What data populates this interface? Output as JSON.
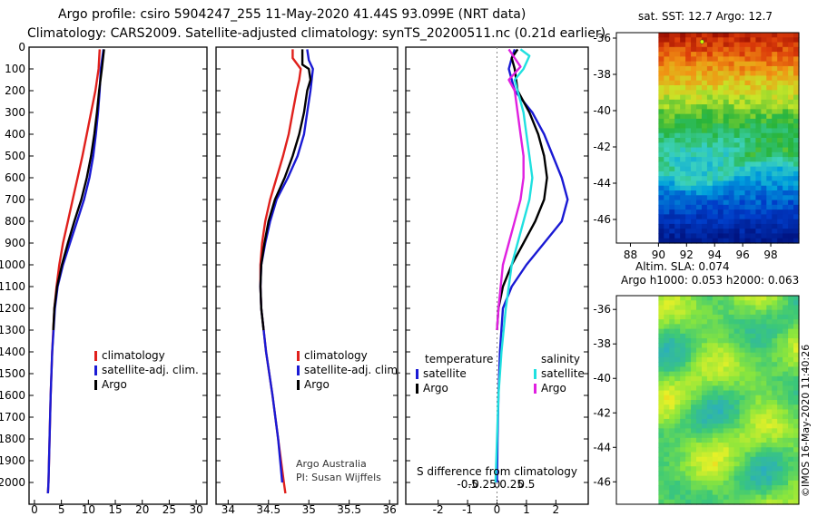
{
  "header": {
    "line1": "Argo profile: csiro 5904247_255 11-May-2020 41.44S 93.099E (NRT data)",
    "line2": "Climatology: CARS2009. Satellite-adjusted climatology: synTS_20200511.nc (0.21d earlier)"
  },
  "colors": {
    "climatology": "#e0201c",
    "satellite": "#1a1ad4",
    "argo": "#000000",
    "salinity_satellite": "#20e0e0",
    "salinity_argo": "#e020e0"
  },
  "credits": {
    "org": "Argo Australia",
    "pi": "PI: Susan Wijffels",
    "stamp": "©IMOS 16-May-2020 11:40:26"
  },
  "chart_data": [
    {
      "id": "temperature",
      "type": "line",
      "ylabel": "",
      "ylim": [
        0,
        2100
      ],
      "y_ticks": [
        0,
        100,
        200,
        300,
        400,
        500,
        600,
        700,
        800,
        900,
        1000,
        1100,
        1200,
        1300,
        1400,
        1500,
        1600,
        1700,
        1800,
        1900,
        2000
      ],
      "xlim": [
        -1,
        32
      ],
      "x_ticks": [
        0,
        5,
        10,
        15,
        20,
        25,
        30
      ],
      "legend": [
        "climatology",
        "satellite-adj. clim.",
        "Argo"
      ],
      "series": [
        {
          "name": "climatology",
          "color_key": "climatology",
          "depth": [
            10,
            100,
            200,
            300,
            400,
            500,
            600,
            700,
            800,
            900,
            1000,
            1100,
            1200,
            1400,
            1600,
            1800,
            2000,
            2050
          ],
          "values": [
            12.1,
            11.9,
            11.3,
            10.5,
            9.7,
            8.9,
            8.0,
            7.1,
            6.2,
            5.3,
            4.6,
            4.1,
            3.7,
            3.3,
            3.0,
            2.8,
            2.6,
            2.5
          ]
        },
        {
          "name": "satellite-adj. clim.",
          "color_key": "satellite",
          "depth": [
            10,
            100,
            200,
            300,
            400,
            500,
            600,
            700,
            800,
            900,
            1000,
            1100,
            1200,
            1400,
            1600,
            1800,
            2000,
            2050
          ],
          "values": [
            12.8,
            12.3,
            12.1,
            11.8,
            11.4,
            10.9,
            10.2,
            9.2,
            7.9,
            6.6,
            5.3,
            4.3,
            3.8,
            3.3,
            3.0,
            2.8,
            2.6,
            2.5
          ]
        },
        {
          "name": "Argo",
          "color_key": "argo",
          "depth": [
            10,
            100,
            200,
            300,
            400,
            500,
            600,
            700,
            800,
            900,
            1000,
            1100,
            1200,
            1300
          ],
          "values": [
            12.9,
            12.5,
            12.0,
            11.6,
            11.1,
            10.5,
            9.7,
            8.7,
            7.4,
            6.2,
            5.1,
            4.2,
            3.7,
            3.5
          ]
        }
      ]
    },
    {
      "id": "salinity",
      "type": "line",
      "ylim": [
        0,
        2100
      ],
      "xlim": [
        33.85,
        36.1
      ],
      "x_ticks": [
        34,
        34.5,
        35,
        35.5,
        36
      ],
      "x_tick_labels": [
        "34",
        "34.5",
        "35",
        "35.5",
        "36"
      ],
      "legend": [
        "climatology",
        "satellite-adj. clim.",
        "Argo"
      ],
      "series": [
        {
          "name": "climatology",
          "color_key": "climatology",
          "depth": [
            10,
            50,
            100,
            150,
            200,
            300,
            400,
            500,
            600,
            700,
            800,
            900,
            1000,
            1100,
            1200,
            1400,
            1600,
            1800,
            2000,
            2050
          ],
          "values": [
            34.8,
            34.8,
            34.9,
            34.88,
            34.85,
            34.8,
            34.75,
            34.68,
            34.6,
            34.52,
            34.46,
            34.42,
            34.4,
            34.4,
            34.41,
            34.47,
            34.55,
            34.62,
            34.69,
            34.71
          ]
        },
        {
          "name": "satellite-adj. clim.",
          "color_key": "satellite",
          "depth": [
            10,
            60,
            100,
            200,
            300,
            400,
            500,
            600,
            700,
            800,
            900,
            1000,
            1100,
            1200,
            1400,
            1600,
            1800,
            2000
          ],
          "values": [
            34.98,
            35.0,
            35.05,
            35.02,
            34.98,
            34.94,
            34.86,
            34.74,
            34.6,
            34.52,
            34.46,
            34.41,
            34.4,
            34.41,
            34.47,
            34.55,
            34.62,
            34.67
          ]
        },
        {
          "name": "Argo",
          "color_key": "argo",
          "depth": [
            10,
            80,
            100,
            150,
            200,
            300,
            400,
            500,
            600,
            700,
            800,
            900,
            1000,
            1100,
            1200,
            1300
          ],
          "values": [
            34.92,
            34.92,
            35.0,
            35.02,
            34.98,
            34.94,
            34.88,
            34.8,
            34.7,
            34.58,
            34.5,
            34.45,
            34.41,
            34.4,
            34.41,
            34.44
          ]
        }
      ]
    },
    {
      "id": "difference",
      "type": "line",
      "title": "S difference from climatology",
      "ylim": [
        0,
        2100
      ],
      "xlim": [
        -3.1,
        3.1
      ],
      "x_ticks_temperature": [
        -2,
        -1,
        0,
        1,
        2
      ],
      "x_tick_labels_salinity": [
        "-0.5",
        "-0.25",
        "0",
        "0.25",
        "0.5"
      ],
      "legend_groups": [
        {
          "title": "temperature",
          "items": [
            "satellite",
            "Argo"
          ]
        },
        {
          "title": "salinity",
          "items": [
            "satellite",
            "Argo"
          ]
        }
      ],
      "series": [
        {
          "name": "temperature satellite",
          "color_key": "satellite",
          "depth": [
            10,
            50,
            100,
            200,
            300,
            400,
            500,
            600,
            700,
            800,
            900,
            1000,
            1100,
            1200,
            1400,
            1600,
            1800,
            2000
          ],
          "values": [
            0.6,
            0.5,
            0.4,
            0.6,
            1.2,
            1.6,
            1.9,
            2.2,
            2.4,
            2.2,
            1.6,
            1.0,
            0.5,
            0.2,
            0.1,
            0.05,
            0.02,
            0.0
          ]
        },
        {
          "name": "temperature Argo",
          "color_key": "argo",
          "depth": [
            10,
            50,
            100,
            200,
            300,
            400,
            500,
            600,
            700,
            800,
            900,
            1000,
            1100,
            1200,
            1300
          ],
          "values": [
            0.7,
            0.5,
            0.6,
            0.7,
            1.1,
            1.4,
            1.6,
            1.7,
            1.6,
            1.3,
            0.9,
            0.5,
            0.2,
            0.05,
            0.0
          ]
        },
        {
          "name": "salinity satellite",
          "color_key": "salinity_satellite",
          "depth": [
            10,
            40,
            100,
            150,
            200,
            300,
            400,
            500,
            600,
            700,
            800,
            900,
            1000,
            1200,
            1400,
            1600,
            1800,
            2000
          ],
          "values": [
            0.8,
            1.1,
            0.9,
            0.6,
            0.7,
            0.9,
            1.0,
            1.1,
            1.2,
            1.1,
            0.9,
            0.7,
            0.5,
            0.3,
            0.15,
            0.05,
            0.0,
            -0.05
          ]
        },
        {
          "name": "salinity Argo",
          "color_key": "salinity_argo",
          "depth": [
            10,
            50,
            90,
            150,
            200,
            300,
            400,
            500,
            600,
            700,
            800,
            900,
            1000,
            1200,
            1300
          ],
          "values": [
            0.4,
            0.6,
            0.8,
            0.4,
            0.6,
            0.7,
            0.8,
            0.9,
            0.9,
            0.8,
            0.6,
            0.4,
            0.2,
            0.05,
            0.0
          ]
        }
      ]
    },
    {
      "id": "sst-map",
      "type": "heatmap",
      "title": "sat. SST: 12.7 Argo: 12.7",
      "xlim": [
        87,
        100
      ],
      "ylim": [
        -47.3,
        -35.7
      ],
      "x_ticks": [
        88,
        90,
        92,
        94,
        96,
        98
      ],
      "y_ticks": [
        -36,
        -38,
        -40,
        -42,
        -44,
        -46
      ],
      "data_xlim": [
        90,
        100
      ],
      "argo_position": {
        "lon": 93.1,
        "lat": -36.2
      }
    },
    {
      "id": "sla-map",
      "type": "heatmap",
      "title": "Altim. SLA: 0.074",
      "subtitle": "Argo h1000: 0.053 h2000: 0.063",
      "xlim": [
        87,
        100
      ],
      "ylim": [
        -47.3,
        -35.2
      ],
      "y_ticks": [
        -36,
        -38,
        -40,
        -42,
        -44,
        -46
      ],
      "data_xlim": [
        90,
        100
      ]
    }
  ]
}
